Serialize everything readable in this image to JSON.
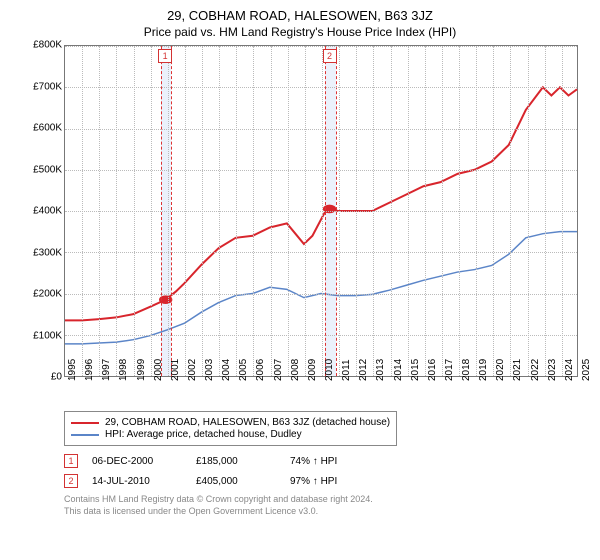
{
  "title1": "29, COBHAM ROAD, HALESOWEN, B63 3JZ",
  "title2": "Price paid vs. HM Land Registry's House Price Index (HPI)",
  "chart": {
    "type": "line",
    "background_color": "#ffffff",
    "grid_color": "#bbbbbb",
    "border_color": "#777777",
    "y": {
      "min": 0,
      "max": 800000,
      "step": 100000,
      "prefix": "£",
      "ticks": [
        "£0",
        "£100K",
        "£200K",
        "£300K",
        "£400K",
        "£500K",
        "£600K",
        "£700K",
        "£800K"
      ],
      "label_fontsize": 10
    },
    "x": {
      "min": 1995,
      "max": 2025,
      "step": 1,
      "ticks": [
        1995,
        1996,
        1997,
        1998,
        1999,
        2000,
        2001,
        2002,
        2003,
        2004,
        2005,
        2006,
        2007,
        2008,
        2009,
        2010,
        2011,
        2012,
        2013,
        2014,
        2015,
        2016,
        2017,
        2018,
        2019,
        2020,
        2021,
        2022,
        2023,
        2024,
        2025
      ],
      "label_fontsize": 10,
      "label_rotation": -90
    },
    "bands": [
      {
        "from": 2000.6,
        "to": 2001.2,
        "color": "#ebf1fb"
      },
      {
        "from": 2010.2,
        "to": 2010.8,
        "color": "#ebf1fb"
      }
    ],
    "markers": [
      {
        "label": "1",
        "x": 2000.9,
        "color": "#d33333"
      },
      {
        "label": "2",
        "x": 2010.5,
        "color": "#d33333"
      }
    ],
    "series": [
      {
        "name": "29, COBHAM ROAD, HALESOWEN, B63 3JZ (detached house)",
        "color": "#d8252c",
        "width": 2,
        "points": [
          {
            "x": 1995.0,
            "y": 135000
          },
          {
            "x": 1996.0,
            "y": 135000
          },
          {
            "x": 1997.0,
            "y": 138000
          },
          {
            "x": 1998.0,
            "y": 142000
          },
          {
            "x": 1999.0,
            "y": 150000
          },
          {
            "x": 2000.0,
            "y": 168000
          },
          {
            "x": 2000.9,
            "y": 185000
          },
          {
            "x": 2001.5,
            "y": 205000
          },
          {
            "x": 2002.0,
            "y": 225000
          },
          {
            "x": 2003.0,
            "y": 270000
          },
          {
            "x": 2004.0,
            "y": 310000
          },
          {
            "x": 2005.0,
            "y": 335000
          },
          {
            "x": 2006.0,
            "y": 340000
          },
          {
            "x": 2007.0,
            "y": 360000
          },
          {
            "x": 2008.0,
            "y": 370000
          },
          {
            "x": 2008.5,
            "y": 345000
          },
          {
            "x": 2009.0,
            "y": 320000
          },
          {
            "x": 2009.5,
            "y": 340000
          },
          {
            "x": 2010.2,
            "y": 395000
          },
          {
            "x": 2010.5,
            "y": 405000
          },
          {
            "x": 2011.0,
            "y": 400000
          },
          {
            "x": 2012.0,
            "y": 400000
          },
          {
            "x": 2013.0,
            "y": 400000
          },
          {
            "x": 2014.0,
            "y": 420000
          },
          {
            "x": 2015.0,
            "y": 440000
          },
          {
            "x": 2016.0,
            "y": 460000
          },
          {
            "x": 2017.0,
            "y": 470000
          },
          {
            "x": 2018.0,
            "y": 490000
          },
          {
            "x": 2019.0,
            "y": 500000
          },
          {
            "x": 2020.0,
            "y": 520000
          },
          {
            "x": 2021.0,
            "y": 560000
          },
          {
            "x": 2022.0,
            "y": 645000
          },
          {
            "x": 2023.0,
            "y": 700000
          },
          {
            "x": 2023.5,
            "y": 680000
          },
          {
            "x": 2024.0,
            "y": 700000
          },
          {
            "x": 2024.5,
            "y": 680000
          },
          {
            "x": 2025.0,
            "y": 695000
          }
        ],
        "dots": [
          {
            "x": 2000.9,
            "y": 185000
          },
          {
            "x": 2010.5,
            "y": 405000
          }
        ]
      },
      {
        "name": "HPI: Average price, detached house, Dudley",
        "color": "#5b85c8",
        "width": 1.5,
        "points": [
          {
            "x": 1995.0,
            "y": 78000
          },
          {
            "x": 1996.0,
            "y": 78000
          },
          {
            "x": 1997.0,
            "y": 80000
          },
          {
            "x": 1998.0,
            "y": 82000
          },
          {
            "x": 1999.0,
            "y": 88000
          },
          {
            "x": 2000.0,
            "y": 98000
          },
          {
            "x": 2001.0,
            "y": 112000
          },
          {
            "x": 2002.0,
            "y": 128000
          },
          {
            "x": 2003.0,
            "y": 155000
          },
          {
            "x": 2004.0,
            "y": 178000
          },
          {
            "x": 2005.0,
            "y": 195000
          },
          {
            "x": 2006.0,
            "y": 200000
          },
          {
            "x": 2007.0,
            "y": 215000
          },
          {
            "x": 2008.0,
            "y": 210000
          },
          {
            "x": 2009.0,
            "y": 190000
          },
          {
            "x": 2010.0,
            "y": 200000
          },
          {
            "x": 2011.0,
            "y": 195000
          },
          {
            "x": 2012.0,
            "y": 195000
          },
          {
            "x": 2013.0,
            "y": 198000
          },
          {
            "x": 2014.0,
            "y": 208000
          },
          {
            "x": 2015.0,
            "y": 220000
          },
          {
            "x": 2016.0,
            "y": 232000
          },
          {
            "x": 2017.0,
            "y": 242000
          },
          {
            "x": 2018.0,
            "y": 252000
          },
          {
            "x": 2019.0,
            "y": 258000
          },
          {
            "x": 2020.0,
            "y": 268000
          },
          {
            "x": 2021.0,
            "y": 295000
          },
          {
            "x": 2022.0,
            "y": 335000
          },
          {
            "x": 2023.0,
            "y": 345000
          },
          {
            "x": 2024.0,
            "y": 350000
          },
          {
            "x": 2025.0,
            "y": 350000
          }
        ]
      }
    ]
  },
  "legend": {
    "items": [
      {
        "color": "#d8252c",
        "label": "29, COBHAM ROAD, HALESOWEN, B63 3JZ (detached house)"
      },
      {
        "color": "#5b85c8",
        "label": "HPI: Average price, detached house, Dudley"
      }
    ]
  },
  "sales": [
    {
      "marker": "1",
      "marker_color": "#d33333",
      "date": "06-DEC-2000",
      "price": "£185,000",
      "hpi": "74% ↑ HPI"
    },
    {
      "marker": "2",
      "marker_color": "#d33333",
      "date": "14-JUL-2010",
      "price": "£405,000",
      "hpi": "97% ↑ HPI"
    }
  ],
  "footer": {
    "line1": "Contains HM Land Registry data © Crown copyright and database right 2024.",
    "line2": "This data is licensed under the Open Government Licence v3.0."
  }
}
